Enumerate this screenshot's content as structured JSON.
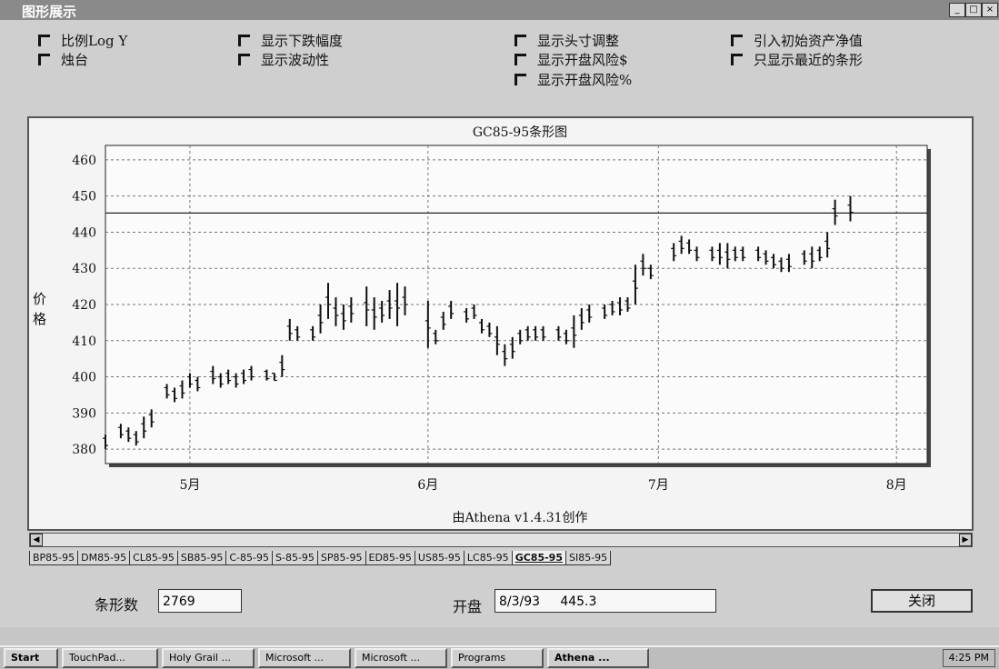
{
  "window": {
    "title": "图形展示",
    "controls": [
      "_",
      "□",
      "×"
    ]
  },
  "options": {
    "col1": [
      "比例Log Y",
      "烛台"
    ],
    "col2": [
      "显示下跌幅度",
      "显示波动性"
    ],
    "col3": [
      "显示头寸调整",
      "显示开盘风险$",
      "显示开盘风险%"
    ],
    "col4": [
      "引入初始资产净值",
      "只显示最近的条形"
    ]
  },
  "chart": {
    "title": "GC85-95条形图",
    "footer": "由Athena v1.4.31创作",
    "ylabel": [
      "价",
      "格"
    ]
  },
  "chart_data": {
    "type": "bar",
    "title": "GC85-95条形图",
    "ylabel": "价格",
    "xlabel": "",
    "yticks": [
      460,
      450,
      440,
      430,
      420,
      410,
      400,
      390,
      380
    ],
    "ylim": [
      376,
      464
    ],
    "xticks": [
      "5月",
      "6月",
      "7月",
      "8月"
    ],
    "xtick_pos": [
      1,
      32,
      62,
      93
    ],
    "xlim": [
      -10,
      97
    ],
    "reference_line": 445.3,
    "grid": true,
    "bars": [
      {
        "x": -10,
        "low": 380,
        "high": 384
      },
      {
        "x": -8,
        "low": 383,
        "high": 387
      },
      {
        "x": -7,
        "low": 382,
        "high": 386
      },
      {
        "x": -6,
        "low": 381,
        "high": 385
      },
      {
        "x": -5,
        "low": 383,
        "high": 389
      },
      {
        "x": -4,
        "low": 386,
        "high": 391
      },
      {
        "x": -2,
        "low": 394,
        "high": 398
      },
      {
        "x": -1,
        "low": 393,
        "high": 397
      },
      {
        "x": 0,
        "low": 394,
        "high": 399
      },
      {
        "x": 1,
        "low": 397,
        "high": 401
      },
      {
        "x": 2,
        "low": 396,
        "high": 400
      },
      {
        "x": 4,
        "low": 398,
        "high": 403
      },
      {
        "x": 5,
        "low": 397,
        "high": 401
      },
      {
        "x": 6,
        "low": 398,
        "high": 402
      },
      {
        "x": 7,
        "low": 397,
        "high": 401
      },
      {
        "x": 8,
        "low": 398,
        "high": 402
      },
      {
        "x": 9,
        "low": 399,
        "high": 403
      },
      {
        "x": 11,
        "low": 399,
        "high": 402
      },
      {
        "x": 12,
        "low": 399,
        "high": 401
      },
      {
        "x": 13,
        "low": 400,
        "high": 406
      },
      {
        "x": 14,
        "low": 410,
        "high": 416
      },
      {
        "x": 15,
        "low": 410,
        "high": 414
      },
      {
        "x": 17,
        "low": 410,
        "high": 414
      },
      {
        "x": 18,
        "low": 412,
        "high": 420
      },
      {
        "x": 19,
        "low": 416,
        "high": 426
      },
      {
        "x": 20,
        "low": 414,
        "high": 422
      },
      {
        "x": 21,
        "low": 413,
        "high": 420
      },
      {
        "x": 22,
        "low": 415,
        "high": 422
      },
      {
        "x": 24,
        "low": 414,
        "high": 425
      },
      {
        "x": 25,
        "low": 413,
        "high": 422
      },
      {
        "x": 26,
        "low": 415,
        "high": 421
      },
      {
        "x": 27,
        "low": 416,
        "high": 424
      },
      {
        "x": 28,
        "low": 414,
        "high": 426
      },
      {
        "x": 29,
        "low": 417,
        "high": 425
      },
      {
        "x": 32,
        "low": 408,
        "high": 421
      },
      {
        "x": 33,
        "low": 409,
        "high": 413
      },
      {
        "x": 34,
        "low": 413,
        "high": 418
      },
      {
        "x": 35,
        "low": 416,
        "high": 421
      },
      {
        "x": 37,
        "low": 415,
        "high": 419
      },
      {
        "x": 38,
        "low": 416,
        "high": 420
      },
      {
        "x": 39,
        "low": 412,
        "high": 416
      },
      {
        "x": 40,
        "low": 411,
        "high": 415
      },
      {
        "x": 41,
        "low": 406,
        "high": 414
      },
      {
        "x": 42,
        "low": 403,
        "high": 409
      },
      {
        "x": 43,
        "low": 405,
        "high": 411
      },
      {
        "x": 44,
        "low": 409,
        "high": 413
      },
      {
        "x": 45,
        "low": 410,
        "high": 414
      },
      {
        "x": 46,
        "low": 410,
        "high": 414
      },
      {
        "x": 47,
        "low": 410,
        "high": 414
      },
      {
        "x": 49,
        "low": 410,
        "high": 414
      },
      {
        "x": 50,
        "low": 409,
        "high": 413
      },
      {
        "x": 51,
        "low": 408,
        "high": 417
      },
      {
        "x": 52,
        "low": 413,
        "high": 419
      },
      {
        "x": 53,
        "low": 415,
        "high": 420
      },
      {
        "x": 55,
        "low": 416,
        "high": 420
      },
      {
        "x": 56,
        "low": 417,
        "high": 421
      },
      {
        "x": 57,
        "low": 417,
        "high": 422
      },
      {
        "x": 58,
        "low": 418,
        "high": 422
      },
      {
        "x": 59,
        "low": 420,
        "high": 431
      },
      {
        "x": 60,
        "low": 428,
        "high": 434
      },
      {
        "x": 61,
        "low": 427,
        "high": 431
      },
      {
        "x": 64,
        "low": 432,
        "high": 437
      },
      {
        "x": 65,
        "low": 434,
        "high": 439
      },
      {
        "x": 66,
        "low": 434,
        "high": 438
      },
      {
        "x": 67,
        "low": 432,
        "high": 436
      },
      {
        "x": 69,
        "low": 432,
        "high": 436
      },
      {
        "x": 70,
        "low": 431,
        "high": 437
      },
      {
        "x": 71,
        "low": 430,
        "high": 437
      },
      {
        "x": 72,
        "low": 432,
        "high": 436
      },
      {
        "x": 73,
        "low": 432,
        "high": 436
      },
      {
        "x": 75,
        "low": 432,
        "high": 436
      },
      {
        "x": 76,
        "low": 431,
        "high": 435
      },
      {
        "x": 77,
        "low": 430,
        "high": 434
      },
      {
        "x": 78,
        "low": 429,
        "high": 433
      },
      {
        "x": 79,
        "low": 429,
        "high": 434
      },
      {
        "x": 81,
        "low": 431,
        "high": 435
      },
      {
        "x": 82,
        "low": 430,
        "high": 436
      },
      {
        "x": 83,
        "low": 432,
        "high": 436
      },
      {
        "x": 84,
        "low": 433,
        "high": 440
      },
      {
        "x": 85,
        "low": 442,
        "high": 449
      },
      {
        "x": 87,
        "low": 443,
        "high": 450
      }
    ]
  },
  "tabs": [
    "BP85-95",
    "DM85-95",
    "CL85-95",
    "SB85-95",
    "C-85-95",
    "S-85-95",
    "SP85-95",
    "ED85-95",
    "US85-95",
    "LC85-95",
    "GC85-95",
    "SI85-95"
  ],
  "active_tab": "GC85-95",
  "bottom": {
    "bars_label": "条形数",
    "bars_value": "2769",
    "open_label": "开盘",
    "open_value": "8/3/93     445.3",
    "close_label": "关闭"
  },
  "taskbar": {
    "buttons": [
      "Start",
      "TouchPad...",
      "Holy Grail ...",
      "Microsoft ...",
      "Microsoft ...",
      "Programs",
      "Athena ..."
    ],
    "clock": "4:25 PM"
  }
}
